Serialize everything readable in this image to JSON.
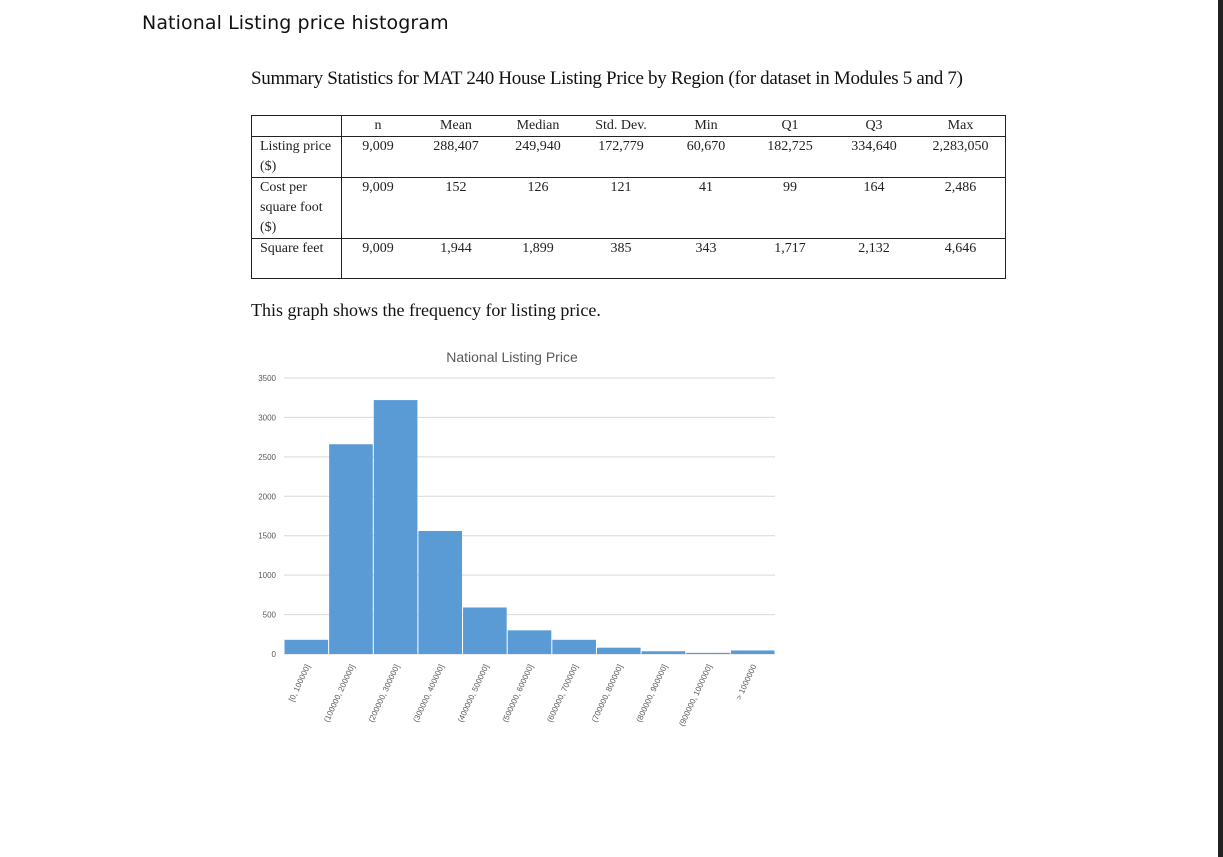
{
  "page": {
    "heading": "National Listing price histogram",
    "summary_title": "Summary Statistics for MAT 240 House Listing Price by Region (for dataset in Modules 5 and 7)",
    "graph_text": "This graph shows the frequency for listing price."
  },
  "table": {
    "headers": [
      "",
      "n",
      "Mean",
      "Median",
      "Std. Dev.",
      "Min",
      "Q1",
      "Q3",
      "Max"
    ],
    "rows": [
      {
        "label": "Listing price ($)",
        "values": [
          "9,009",
          "288,407",
          "249,940",
          "172,779",
          "60,670",
          "182,725",
          "334,640",
          "2,283,050"
        ]
      },
      {
        "label": "Cost per square foot ($)",
        "values": [
          "9,009",
          "152",
          "126",
          "121",
          "41",
          "99",
          "164",
          "2,486"
        ]
      },
      {
        "label": "Square feet",
        "values": [
          "9,009",
          "1,944",
          "1,899",
          "385",
          "343",
          "1,717",
          "2,132",
          "4,646"
        ]
      }
    ]
  },
  "chart_data": {
    "type": "bar",
    "title": "National Listing Price",
    "xlabel": "",
    "ylabel": "",
    "ylim": [
      0,
      3500
    ],
    "yticks": [
      0,
      500,
      1000,
      1500,
      2000,
      2500,
      3000,
      3500
    ],
    "grid": true,
    "bar_color": "#5b9bd5",
    "categories": [
      "[0, 100000]",
      "(100000, 200000]",
      "(200000, 300000]",
      "(300000, 400000]",
      "(400000, 500000]",
      "(500000, 600000]",
      "(600000, 700000]",
      "(700000, 800000]",
      "(800000, 900000]",
      "(900000, 1000000]",
      "> 1000000"
    ],
    "values": [
      180,
      2660,
      3220,
      1560,
      590,
      300,
      180,
      80,
      35,
      15,
      45
    ]
  }
}
